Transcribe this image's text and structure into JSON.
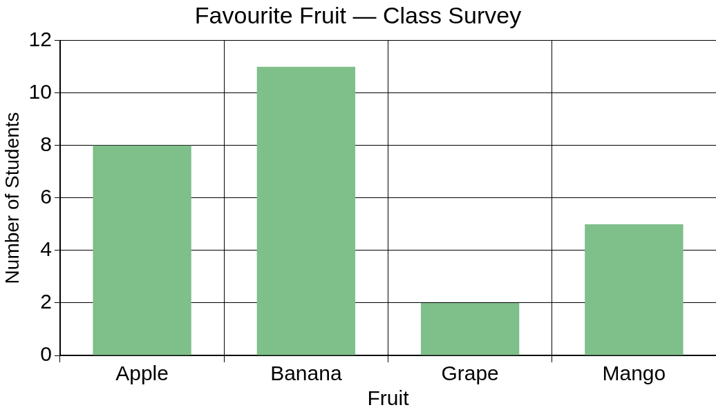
{
  "chart_data": {
    "type": "bar",
    "title": "Favourite Fruit — Class Survey",
    "xlabel": "Fruit",
    "ylabel": "Number of Students",
    "categories": [
      "Apple",
      "Banana",
      "Grape",
      "Mango"
    ],
    "values": [
      8,
      11,
      2,
      5
    ],
    "color": "#7fbf8a",
    "ylim": [
      0,
      12
    ],
    "yticks": [
      0,
      2,
      4,
      6,
      8,
      10,
      12
    ],
    "grid": true
  }
}
